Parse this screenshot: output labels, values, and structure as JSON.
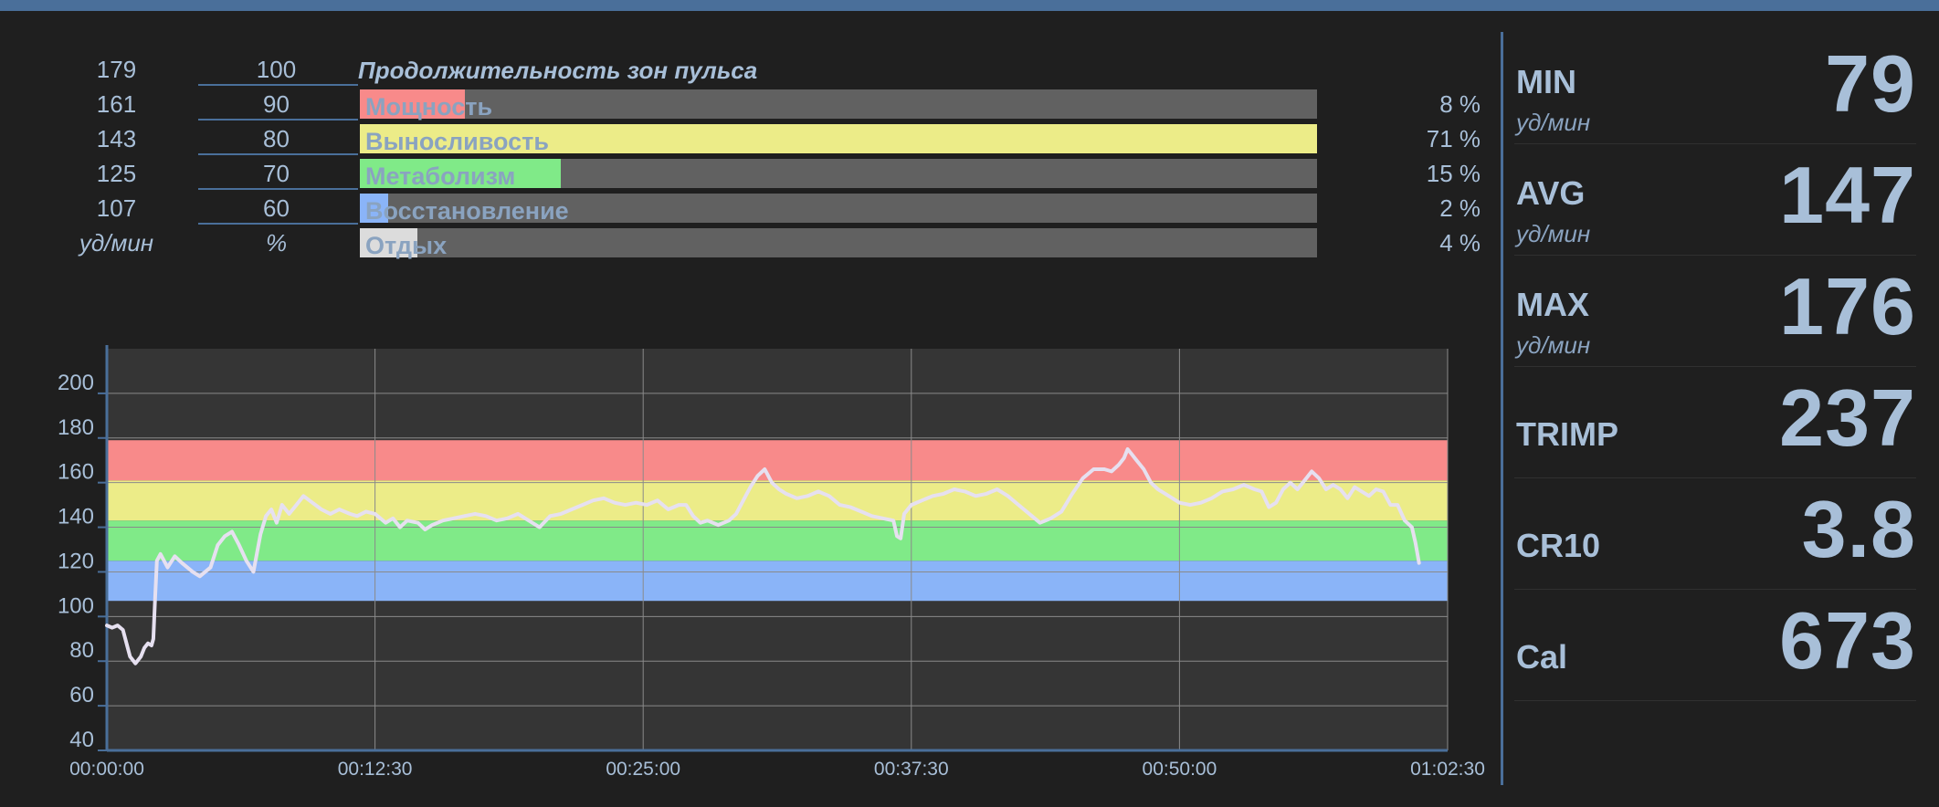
{
  "zone_table": {
    "title": "Продолжительность зон пульса",
    "unit_bpm": "уд/мин",
    "unit_pct": "%",
    "thresholds": [
      {
        "bpm": "179",
        "pct": "100"
      },
      {
        "bpm": "161",
        "pct": "90"
      },
      {
        "bpm": "143",
        "pct": "80"
      },
      {
        "bpm": "125",
        "pct": "70"
      },
      {
        "bpm": "107",
        "pct": "60"
      }
    ],
    "zones": [
      {
        "label": "Мощность",
        "percent_label": "8 %",
        "fill_fraction": 0.11,
        "color": "#f88a8a"
      },
      {
        "label": "Выносливость",
        "percent_label": "71 %",
        "fill_fraction": 1.0,
        "color": "#ecec88"
      },
      {
        "label": "Метаболизм",
        "percent_label": "15 %",
        "fill_fraction": 0.21,
        "color": "#80ea88"
      },
      {
        "label": "Восстановление",
        "percent_label": "2 %",
        "fill_fraction": 0.03,
        "color": "#8ab4f8"
      },
      {
        "label": "Отдых",
        "percent_label": "4 %",
        "fill_fraction": 0.06,
        "color": "#dcdcdc"
      }
    ]
  },
  "chart_data": {
    "type": "line",
    "x_unit": "seconds",
    "xlim": [
      0,
      3750
    ],
    "x_ticks": [
      "00:00:00",
      "00:12:30",
      "00:25:00",
      "00:37:30",
      "00:50:00",
      "01:02:30"
    ],
    "ylim": [
      40,
      220
    ],
    "y_ticks": [
      "40",
      "60",
      "80",
      "100",
      "120",
      "140",
      "160",
      "180",
      "200"
    ],
    "zone_bands": [
      {
        "from": 107,
        "to": 125,
        "color": "#8ab4f8"
      },
      {
        "from": 125,
        "to": 143,
        "color": "#80ea88"
      },
      {
        "from": 143,
        "to": 161,
        "color": "#ecec88"
      },
      {
        "from": 161,
        "to": 179,
        "color": "#f88a8a"
      }
    ],
    "series": [
      {
        "values": [
          [
            0,
            96
          ],
          [
            15,
            95
          ],
          [
            30,
            96
          ],
          [
            45,
            94
          ],
          [
            55,
            88
          ],
          [
            65,
            82
          ],
          [
            80,
            79
          ],
          [
            95,
            82
          ],
          [
            105,
            86
          ],
          [
            115,
            88
          ],
          [
            125,
            87
          ],
          [
            130,
            90
          ],
          [
            135,
            108
          ],
          [
            140,
            125
          ],
          [
            150,
            128
          ],
          [
            170,
            122
          ],
          [
            190,
            127
          ],
          [
            210,
            124
          ],
          [
            240,
            120
          ],
          [
            260,
            118
          ],
          [
            290,
            122
          ],
          [
            310,
            132
          ],
          [
            330,
            136
          ],
          [
            350,
            138
          ],
          [
            370,
            132
          ],
          [
            390,
            125
          ],
          [
            410,
            120
          ],
          [
            430,
            137
          ],
          [
            445,
            145
          ],
          [
            460,
            148
          ],
          [
            475,
            142
          ],
          [
            490,
            150
          ],
          [
            510,
            146
          ],
          [
            530,
            150
          ],
          [
            550,
            154
          ],
          [
            575,
            151
          ],
          [
            600,
            148
          ],
          [
            625,
            146
          ],
          [
            650,
            148
          ],
          [
            680,
            146
          ],
          [
            700,
            145
          ],
          [
            725,
            147
          ],
          [
            750,
            146
          ],
          [
            780,
            142
          ],
          [
            800,
            144
          ],
          [
            820,
            140
          ],
          [
            840,
            143
          ],
          [
            870,
            142
          ],
          [
            890,
            139
          ],
          [
            910,
            141
          ],
          [
            940,
            143
          ],
          [
            970,
            144
          ],
          [
            1000,
            145
          ],
          [
            1030,
            146
          ],
          [
            1060,
            145
          ],
          [
            1090,
            143
          ],
          [
            1120,
            144
          ],
          [
            1150,
            146
          ],
          [
            1180,
            143
          ],
          [
            1210,
            140
          ],
          [
            1240,
            145
          ],
          [
            1270,
            146
          ],
          [
            1300,
            148
          ],
          [
            1330,
            150
          ],
          [
            1360,
            152
          ],
          [
            1390,
            153
          ],
          [
            1420,
            151
          ],
          [
            1450,
            150
          ],
          [
            1480,
            151
          ],
          [
            1510,
            150
          ],
          [
            1540,
            152
          ],
          [
            1570,
            148
          ],
          [
            1600,
            150
          ],
          [
            1620,
            150
          ],
          [
            1640,
            145
          ],
          [
            1660,
            142
          ],
          [
            1680,
            143
          ],
          [
            1710,
            141
          ],
          [
            1740,
            143
          ],
          [
            1760,
            146
          ],
          [
            1780,
            152
          ],
          [
            1800,
            158
          ],
          [
            1820,
            163
          ],
          [
            1840,
            166
          ],
          [
            1860,
            160
          ],
          [
            1880,
            157
          ],
          [
            1900,
            155
          ],
          [
            1930,
            153
          ],
          [
            1960,
            154
          ],
          [
            1990,
            156
          ],
          [
            2020,
            154
          ],
          [
            2050,
            150
          ],
          [
            2080,
            149
          ],
          [
            2110,
            147
          ],
          [
            2140,
            145
          ],
          [
            2170,
            144
          ],
          [
            2200,
            143
          ],
          [
            2210,
            136
          ],
          [
            2220,
            135
          ],
          [
            2230,
            146
          ],
          [
            2250,
            150
          ],
          [
            2280,
            152
          ],
          [
            2310,
            154
          ],
          [
            2340,
            155
          ],
          [
            2370,
            157
          ],
          [
            2400,
            156
          ],
          [
            2430,
            154
          ],
          [
            2460,
            155
          ],
          [
            2490,
            157
          ],
          [
            2520,
            154
          ],
          [
            2550,
            150
          ],
          [
            2580,
            146
          ],
          [
            2610,
            142
          ],
          [
            2640,
            144
          ],
          [
            2670,
            147
          ],
          [
            2700,
            155
          ],
          [
            2730,
            162
          ],
          [
            2760,
            166
          ],
          [
            2790,
            166
          ],
          [
            2810,
            165
          ],
          [
            2830,
            168
          ],
          [
            2845,
            171
          ],
          [
            2855,
            175
          ],
          [
            2865,
            173
          ],
          [
            2880,
            170
          ],
          [
            2900,
            166
          ],
          [
            2920,
            160
          ],
          [
            2940,
            157
          ],
          [
            2970,
            154
          ],
          [
            3000,
            151
          ],
          [
            3030,
            150
          ],
          [
            3060,
            151
          ],
          [
            3090,
            153
          ],
          [
            3120,
            156
          ],
          [
            3150,
            157
          ],
          [
            3180,
            159
          ],
          [
            3210,
            157
          ],
          [
            3230,
            156
          ],
          [
            3250,
            149
          ],
          [
            3270,
            151
          ],
          [
            3290,
            157
          ],
          [
            3310,
            160
          ],
          [
            3330,
            157
          ],
          [
            3350,
            161
          ],
          [
            3370,
            165
          ],
          [
            3390,
            162
          ],
          [
            3410,
            157
          ],
          [
            3430,
            159
          ],
          [
            3450,
            157
          ],
          [
            3470,
            153
          ],
          [
            3490,
            158
          ],
          [
            3510,
            156
          ],
          [
            3530,
            154
          ],
          [
            3550,
            157
          ],
          [
            3570,
            156
          ],
          [
            3590,
            150
          ],
          [
            3610,
            150
          ],
          [
            3630,
            143
          ],
          [
            3650,
            140
          ],
          [
            3660,
            133
          ],
          [
            3670,
            124
          ]
        ]
      }
    ]
  },
  "stats": [
    {
      "name": "MIN",
      "unit": "уд/мин",
      "value": "79"
    },
    {
      "name": "AVG",
      "unit": "уд/мин",
      "value": "147"
    },
    {
      "name": "MAX",
      "unit": "уд/мин",
      "value": "176"
    },
    {
      "name": "TRIMP",
      "unit": "",
      "value": "237"
    },
    {
      "name": "CR10",
      "unit": "",
      "value": "3.8"
    },
    {
      "name": "Cal",
      "unit": "",
      "value": "673"
    }
  ],
  "colors": {
    "background": "#1f1f1f",
    "accent": "#4a6f9a",
    "text": "#a8bfd8",
    "plot_area": "#353535",
    "grid": "#8a8a8a",
    "hr_line": "#e6e0f0"
  }
}
